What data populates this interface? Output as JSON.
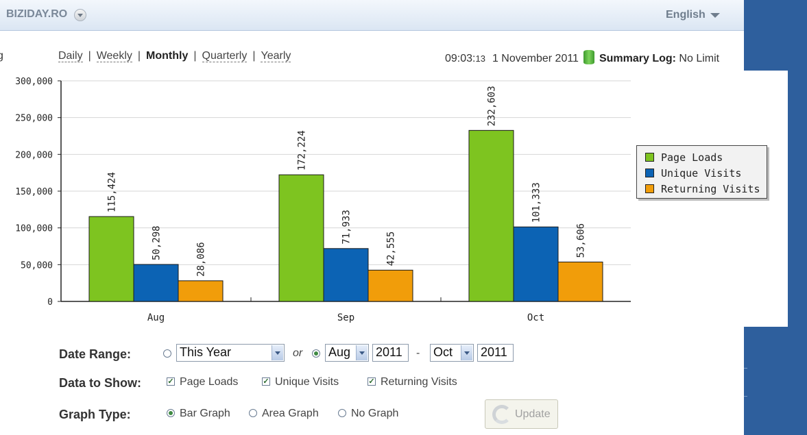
{
  "header": {
    "site_name": "BIZIDAY.RO",
    "language": "English",
    "left_edge_char": "g"
  },
  "periods": {
    "items": [
      "Daily",
      "Weekly",
      "Monthly",
      "Quarterly",
      "Yearly"
    ],
    "active": "Monthly",
    "separator": "|"
  },
  "status": {
    "time_hm": "09:03:",
    "time_s": "13",
    "date": "1 November 2011",
    "log_label": "Summary Log:",
    "log_value": "No Limit"
  },
  "chart_data": {
    "type": "bar",
    "categories": [
      "Aug",
      "Sep",
      "Oct"
    ],
    "series": [
      {
        "name": "Page Loads",
        "values": [
          115424,
          172224,
          232603
        ],
        "labels": [
          "115,424",
          "172,224",
          "232,603"
        ],
        "color": "#7ec420"
      },
      {
        "name": "Unique Visits",
        "values": [
          50298,
          71933,
          101333
        ],
        "labels": [
          "50,298",
          "71,933",
          "101,333"
        ],
        "color": "#0c63b4"
      },
      {
        "name": "Returning Visits",
        "values": [
          28086,
          42555,
          53606
        ],
        "labels": [
          "28,086",
          "42,555",
          "53,606"
        ],
        "color": "#f19d0a"
      }
    ],
    "yticks": [
      0,
      50000,
      100000,
      150000,
      200000,
      250000,
      300000
    ],
    "ytick_labels": [
      "0",
      "50,000",
      "100,000",
      "150,000",
      "200,000",
      "250,000",
      "300,000"
    ],
    "ylim": [
      0,
      300000
    ],
    "grid": true,
    "legend": "right"
  },
  "form": {
    "date_range_label": "Date Range:",
    "preset_value": "This Year",
    "or_text": "or",
    "from_month": "Aug",
    "from_year": "2011",
    "dash": "-",
    "to_month": "Oct",
    "to_year": "2011",
    "data_label": "Data to Show:",
    "data_options": [
      "Page Loads",
      "Unique Visits",
      "Returning Visits"
    ],
    "graph_label": "Graph Type:",
    "graph_options": [
      "Bar Graph",
      "Area Graph",
      "No Graph"
    ],
    "selected_graph": "Bar Graph",
    "update_label": "Update"
  },
  "colors": {
    "header_bg": "#dbe6f3",
    "sidebar": "#2e5f9d",
    "accent_green": "#3f8a43"
  }
}
